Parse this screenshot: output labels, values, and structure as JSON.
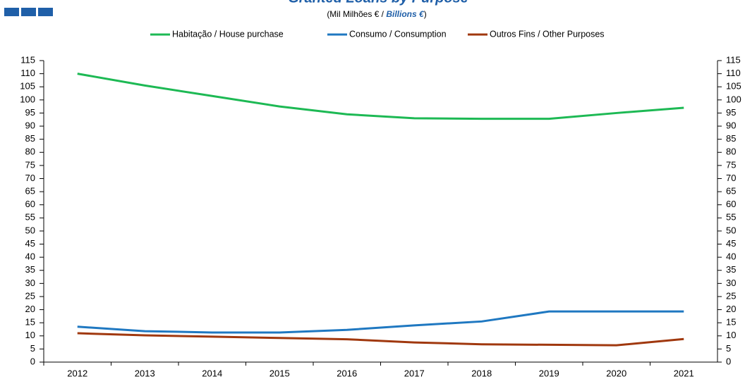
{
  "chart_data": {
    "type": "line",
    "title": "Granted Loans by Purpose",
    "subtitle": [
      "(Mil Milhões € / ",
      "Billions €",
      ")"
    ],
    "categories": [
      "2012",
      "2013",
      "2014",
      "2015",
      "2016",
      "2017",
      "2018",
      "2019",
      "2020",
      "2021"
    ],
    "series": [
      {
        "name": "Habitação / House purchase",
        "color": "#1db954",
        "values": [
          110,
          105.5,
          101.5,
          97.5,
          94.5,
          93,
          92.8,
          92.8,
          95,
          97
        ]
      },
      {
        "name": "Consumo / Consumption",
        "color": "#1f78c1",
        "values": [
          13.5,
          11.8,
          11.3,
          11.3,
          12.3,
          14,
          15.5,
          19.3,
          19.3,
          19.3
        ]
      },
      {
        "name": "Outros Fins / Other Purposes",
        "color": "#a0380e",
        "values": [
          11,
          10.2,
          9.7,
          9.2,
          8.7,
          7.5,
          6.8,
          6.6,
          6.4,
          8.8
        ]
      }
    ],
    "ylim": [
      0,
      115
    ],
    "yticks": [
      0,
      5,
      10,
      15,
      20,
      25,
      30,
      35,
      40,
      45,
      50,
      55,
      60,
      65,
      70,
      75,
      80,
      85,
      90,
      95,
      100,
      105,
      110,
      115
    ],
    "y2lim": [
      0,
      115
    ],
    "y2ticks": [
      0,
      5,
      10,
      15,
      20,
      25,
      30,
      35,
      40,
      45,
      50,
      55,
      60,
      65,
      70,
      75,
      80,
      85,
      90,
      95,
      100,
      105,
      110,
      115
    ],
    "grid": false
  }
}
